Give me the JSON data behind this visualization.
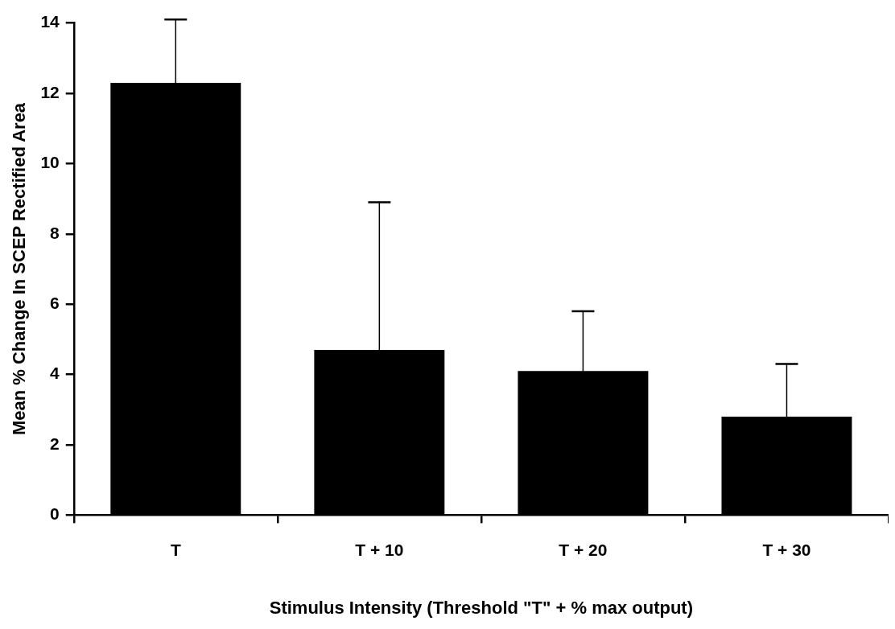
{
  "chart_data": {
    "type": "bar",
    "xlabel": "Stimulus Intensity (Threshold \"T\" + % max output)",
    "ylabel": "Mean % Change In SCEP Rectified Area",
    "categories": [
      "T",
      "T + 10",
      "T + 20",
      "T + 30"
    ],
    "values": [
      12.3,
      4.7,
      4.1,
      2.8
    ],
    "errors": [
      1.8,
      4.2,
      1.7,
      1.5
    ],
    "color": "#000000",
    "ylim": [
      0,
      14
    ],
    "yticks": [
      0,
      2,
      4,
      6,
      8,
      10,
      12,
      14
    ],
    "grid": false,
    "legend": false
  }
}
